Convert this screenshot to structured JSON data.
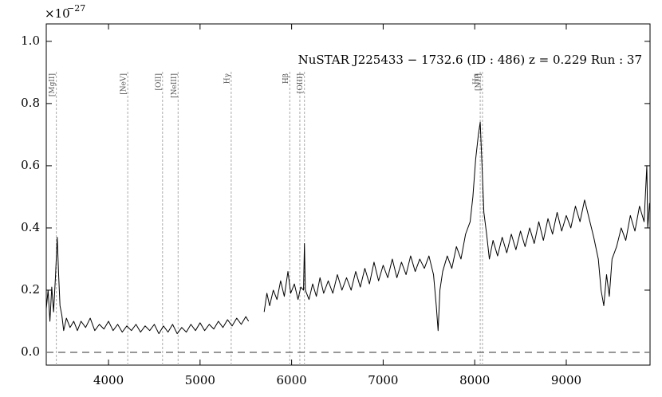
{
  "chart_data": {
    "type": "line",
    "annotation": "NuSTAR J225433 − 1732.6 (ID : 486)   z = 0.229   Run : 37",
    "offset_base": "×10",
    "offset_exponent": "−27",
    "xlim": [
      3320,
      9915
    ],
    "ylim": [
      -0.041,
      1.056
    ],
    "xticks": [
      4000,
      5000,
      6000,
      7000,
      8000,
      9000
    ],
    "yticks": [
      {
        "value": 0,
        "label": "0.0"
      },
      0.2,
      0.4,
      0.6,
      0.8,
      {
        "value": 1,
        "label": "1.0"
      }
    ],
    "color": "#000000",
    "zero_line": 0,
    "vlines": {
      "x": [
        3430,
        4210,
        4590,
        4760,
        5340,
        5980,
        6090,
        6140,
        8060,
        8085
      ],
      "labels": [
        "[MgII]",
        "[NeV]",
        "[OII]",
        "[NeIII]",
        "Hγ",
        "Hβ",
        null,
        "[OIII]",
        "Hα",
        "[NII]"
      ]
    },
    "x": [
      3320,
      3340,
      3360,
      3380,
      3400,
      3420,
      3440,
      3455,
      3470,
      3490,
      3510,
      3540,
      3580,
      3620,
      3660,
      3700,
      3750,
      3800,
      3850,
      3900,
      3950,
      4000,
      4050,
      4100,
      4150,
      4200,
      4250,
      4300,
      4350,
      4400,
      4450,
      4500,
      4550,
      4600,
      4650,
      4700,
      4750,
      4800,
      4850,
      4900,
      4950,
      5000,
      5050,
      5100,
      5150,
      5200,
      5250,
      5300,
      5350,
      5400,
      5450,
      5500,
      5530,
      5600,
      5700,
      5730,
      5760,
      5800,
      5840,
      5880,
      5920,
      5960,
      5990,
      6030,
      6070,
      6100,
      6130,
      6140,
      6150,
      6190,
      6230,
      6270,
      6310,
      6350,
      6400,
      6450,
      6500,
      6550,
      6600,
      6650,
      6700,
      6750,
      6800,
      6850,
      6900,
      6950,
      7000,
      7050,
      7100,
      7150,
      7200,
      7250,
      7300,
      7350,
      7400,
      7450,
      7500,
      7550,
      7580,
      7600,
      7620,
      7650,
      7700,
      7750,
      7800,
      7850,
      7900,
      7950,
      7980,
      8010,
      8040,
      8060,
      8080,
      8100,
      8130,
      8160,
      8200,
      8250,
      8300,
      8350,
      8400,
      8450,
      8500,
      8550,
      8600,
      8650,
      8700,
      8750,
      8800,
      8850,
      8900,
      8950,
      9000,
      9050,
      9100,
      9150,
      9200,
      9250,
      9300,
      9350,
      9380,
      9410,
      9440,
      9470,
      9500,
      9550,
      9600,
      9650,
      9700,
      9750,
      9800,
      9850,
      9880,
      9890,
      9910
    ],
    "values": [
      0.14,
      0.2,
      0.1,
      0.21,
      0.13,
      0.24,
      0.37,
      0.25,
      0.15,
      0.12,
      0.07,
      0.11,
      0.08,
      0.1,
      0.07,
      0.1,
      0.08,
      0.11,
      0.07,
      0.09,
      0.075,
      0.1,
      0.07,
      0.09,
      0.065,
      0.085,
      0.07,
      0.09,
      0.065,
      0.085,
      0.07,
      0.09,
      0.06,
      0.085,
      0.065,
      0.09,
      0.06,
      0.08,
      0.065,
      0.09,
      0.07,
      0.095,
      0.07,
      0.09,
      0.075,
      0.1,
      0.08,
      0.105,
      0.085,
      0.11,
      0.09,
      0.115,
      0.1,
      null,
      0.13,
      0.19,
      0.15,
      0.2,
      0.17,
      0.23,
      0.18,
      0.26,
      0.19,
      0.22,
      0.17,
      0.21,
      0.2,
      0.35,
      0.2,
      0.17,
      0.22,
      0.18,
      0.24,
      0.19,
      0.23,
      0.19,
      0.25,
      0.2,
      0.24,
      0.2,
      0.26,
      0.21,
      0.27,
      0.22,
      0.29,
      0.23,
      0.28,
      0.24,
      0.3,
      0.24,
      0.29,
      0.25,
      0.31,
      0.26,
      0.3,
      0.27,
      0.31,
      0.25,
      0.15,
      0.07,
      0.2,
      0.26,
      0.31,
      0.27,
      0.34,
      0.3,
      0.38,
      0.42,
      0.5,
      0.62,
      0.7,
      0.74,
      0.6,
      0.45,
      0.38,
      0.3,
      0.36,
      0.31,
      0.37,
      0.32,
      0.38,
      0.33,
      0.39,
      0.34,
      0.4,
      0.35,
      0.42,
      0.36,
      0.43,
      0.38,
      0.45,
      0.39,
      0.44,
      0.4,
      0.47,
      0.42,
      0.49,
      0.43,
      0.37,
      0.3,
      0.2,
      0.15,
      0.25,
      0.18,
      0.3,
      0.34,
      0.4,
      0.36,
      0.44,
      0.39,
      0.47,
      0.42,
      0.6,
      0.4,
      0.48
    ]
  }
}
